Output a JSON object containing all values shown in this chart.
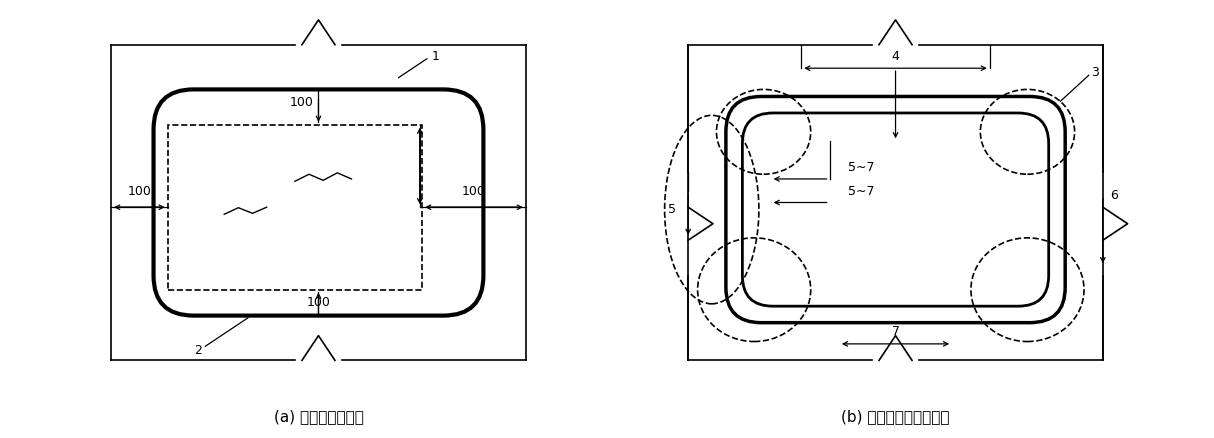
{
  "fig_width": 12.14,
  "fig_height": 4.38,
  "bg_color": "#ffffff",
  "title_a": "(a) 缺陷部位的切除",
  "title_b": "(b) 预热部位及焊接顺序",
  "label_fontsize": 11
}
